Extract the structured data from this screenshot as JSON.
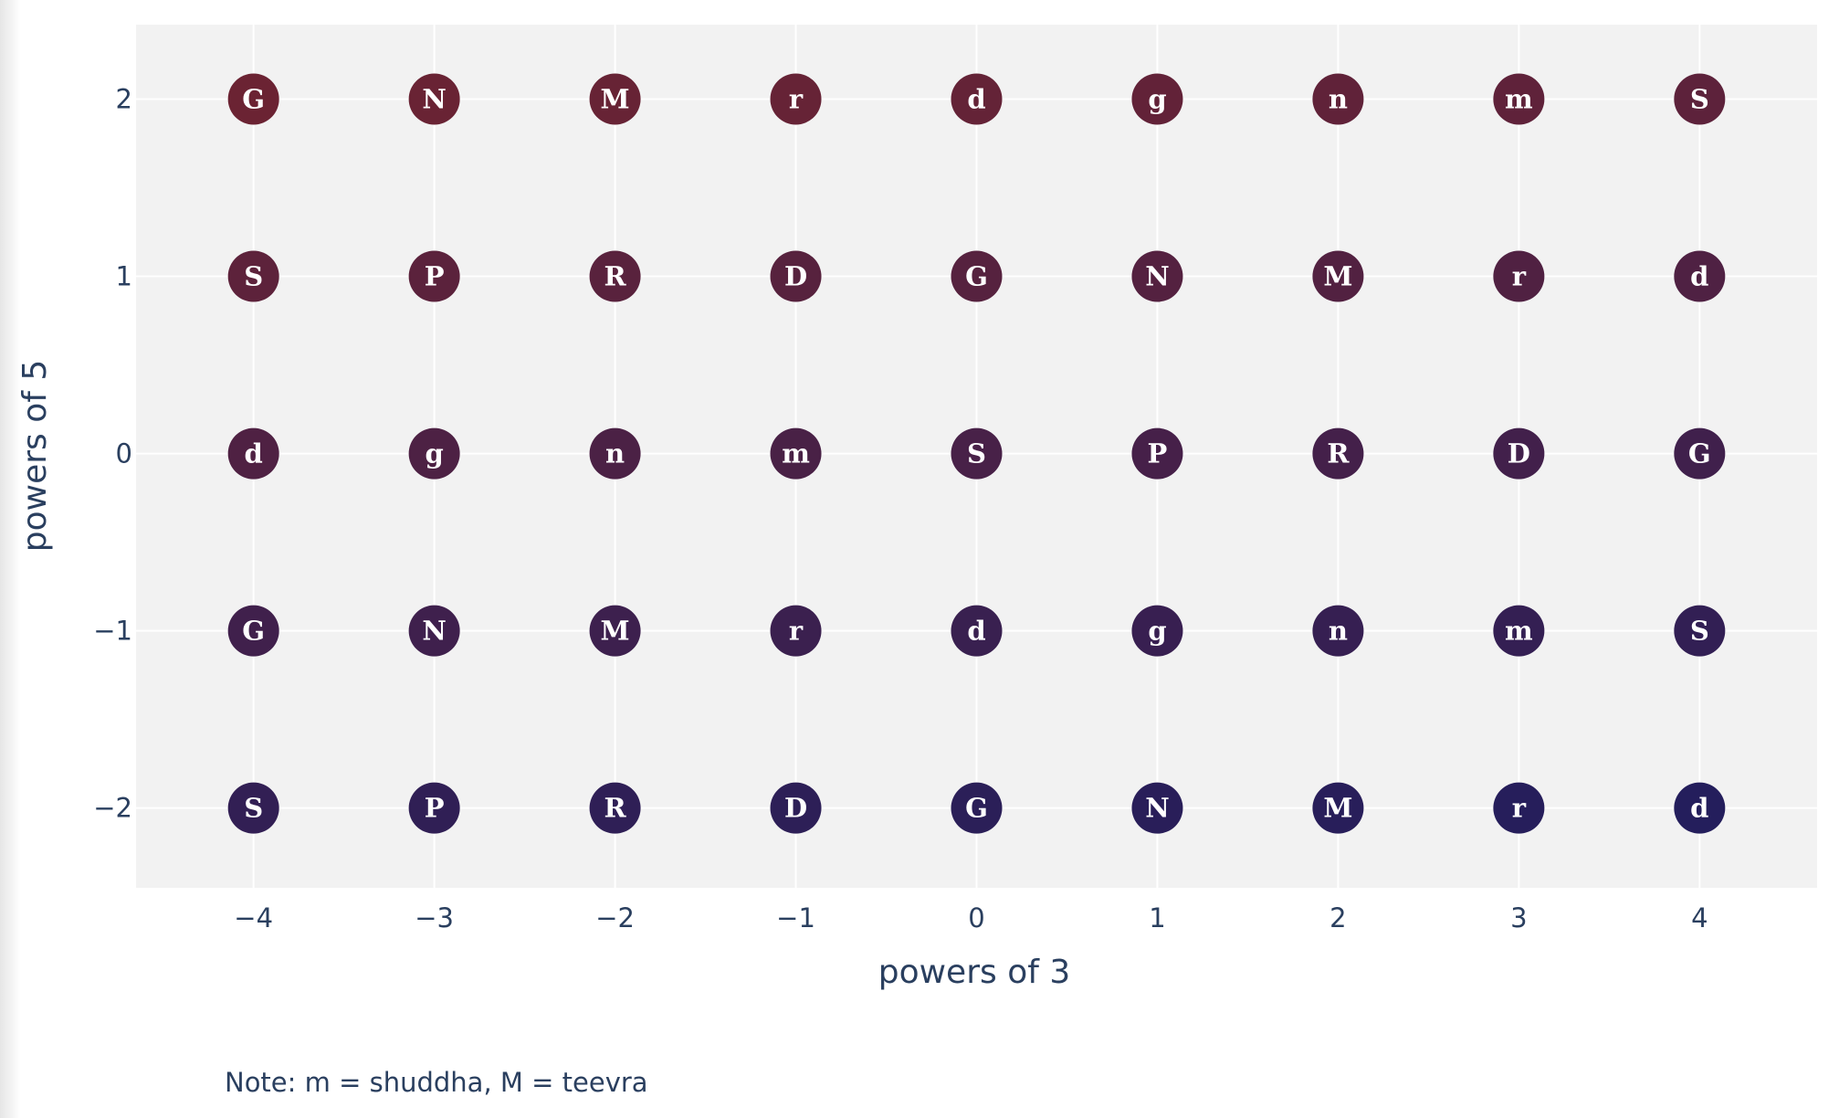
{
  "chart_data": {
    "type": "scatter",
    "xlabel": "powers of 3",
    "ylabel": "powers of 5",
    "xlim": [
      -4.65,
      4.65
    ],
    "ylim": [
      -2.45,
      2.42
    ],
    "x_ticks": [
      -4,
      -3,
      -2,
      -1,
      0,
      1,
      2,
      3,
      4
    ],
    "y_ticks": [
      -2,
      -1,
      0,
      1,
      2
    ],
    "grid": true,
    "note": "Note: m = shuddha, M = teevra",
    "colors": {
      "plot_background": "#f2f2f2",
      "grid": "#ffffff",
      "text": "#2a3f5f",
      "marker_top": "#6b2333",
      "marker_bottom": "#241e5c"
    },
    "x": [
      -4,
      -3,
      -2,
      -1,
      0,
      1,
      2,
      3,
      4
    ],
    "rows": [
      {
        "y": 2,
        "labels": [
          "G",
          "N",
          "M",
          "r",
          "d",
          "g",
          "n",
          "m",
          "S"
        ]
      },
      {
        "y": 1,
        "labels": [
          "S",
          "P",
          "R",
          "D",
          "G",
          "N",
          "M",
          "r",
          "d"
        ]
      },
      {
        "y": 0,
        "labels": [
          "d",
          "g",
          "n",
          "m",
          "S",
          "P",
          "R",
          "D",
          "G"
        ]
      },
      {
        "y": -1,
        "labels": [
          "G",
          "N",
          "M",
          "r",
          "d",
          "g",
          "n",
          "m",
          "S"
        ]
      },
      {
        "y": -2,
        "labels": [
          "S",
          "P",
          "R",
          "D",
          "G",
          "N",
          "M",
          "r",
          "d"
        ]
      }
    ]
  }
}
